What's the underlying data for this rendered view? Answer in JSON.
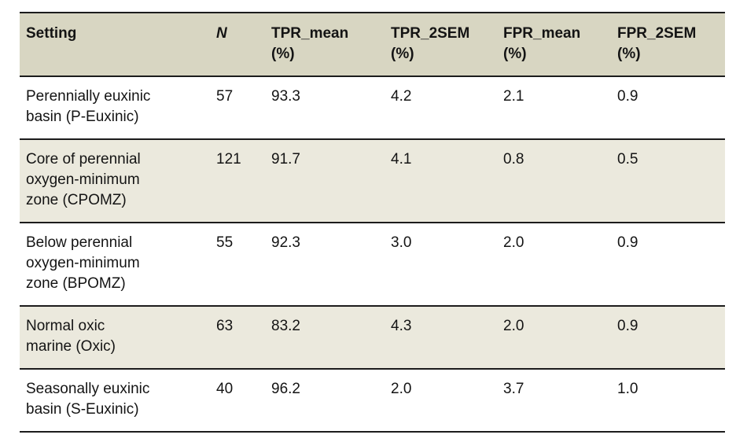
{
  "table": {
    "columns": [
      {
        "key": "setting",
        "label": "Setting",
        "unit": ""
      },
      {
        "key": "n",
        "label": "N",
        "unit": ""
      },
      {
        "key": "tpr_mean",
        "label": "TPR_mean",
        "unit": "(%)"
      },
      {
        "key": "tpr_2sem",
        "label": "TPR_2SEM",
        "unit": "(%)"
      },
      {
        "key": "fpr_mean",
        "label": "FPR_mean",
        "unit": "(%)"
      },
      {
        "key": "fpr_2sem",
        "label": "FPR_2SEM",
        "unit": "(%)"
      }
    ],
    "rows": [
      {
        "setting": "Perennially euxinic basin (P-Euxinic)",
        "n": "57",
        "tpr_mean": "93.3",
        "tpr_2sem": "4.2",
        "fpr_mean": "2.1",
        "fpr_2sem": "0.9"
      },
      {
        "setting": "Core of perennial oxygen-minimum zone (CPOMZ)",
        "n": "121",
        "tpr_mean": "91.7",
        "tpr_2sem": "4.1",
        "fpr_mean": "0.8",
        "fpr_2sem": "0.5"
      },
      {
        "setting": "Below perennial oxygen-minimum zone (BPOMZ)",
        "n": "55",
        "tpr_mean": "92.3",
        "tpr_2sem": "3.0",
        "fpr_mean": "2.0",
        "fpr_2sem": "0.9"
      },
      {
        "setting": "Normal oxic marine (Oxic)",
        "n": "63",
        "tpr_mean": "83.2",
        "tpr_2sem": "4.3",
        "fpr_mean": "2.0",
        "fpr_2sem": "0.9"
      },
      {
        "setting": "Seasonally euxinic basin (S-Euxinic)",
        "n": "40",
        "tpr_mean": "96.2",
        "tpr_2sem": "2.0",
        "fpr_mean": "3.7",
        "fpr_2sem": "1.0"
      }
    ]
  },
  "colors": {
    "header_bg": "#d8d6c2",
    "alt_row_bg": "#ebe9dd",
    "border": "#1c1c1c",
    "text": "#141414",
    "page_bg": "#ffffff"
  }
}
